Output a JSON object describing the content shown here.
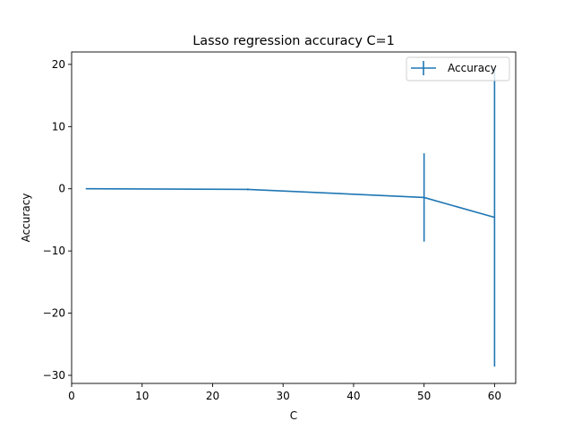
{
  "chart_data": {
    "type": "line",
    "title": "Lasso regression accuracy C=1",
    "xlabel": "C",
    "ylabel": "Accuracy",
    "xlim": [
      0,
      63
    ],
    "ylim": [
      -31.3,
      22
    ],
    "xticks": [
      0,
      10,
      20,
      30,
      40,
      50,
      60
    ],
    "yticks": [
      -30,
      -20,
      -10,
      0,
      10,
      20
    ],
    "xtick_labels": [
      "0",
      "10",
      "20",
      "30",
      "40",
      "50",
      "60"
    ],
    "ytick_labels": [
      "−30",
      "−20",
      "−10",
      "0",
      "10",
      "20"
    ],
    "grid": false,
    "legend": "upper-right",
    "series": [
      {
        "name": "Accuracy",
        "color": "#1f77b4",
        "x": [
          2,
          25,
          50,
          60
        ],
        "y": [
          0.0,
          -0.1,
          -1.4,
          -4.6
        ],
        "yerr": [
          0.0,
          0.15,
          7.1,
          24.0
        ]
      }
    ]
  }
}
